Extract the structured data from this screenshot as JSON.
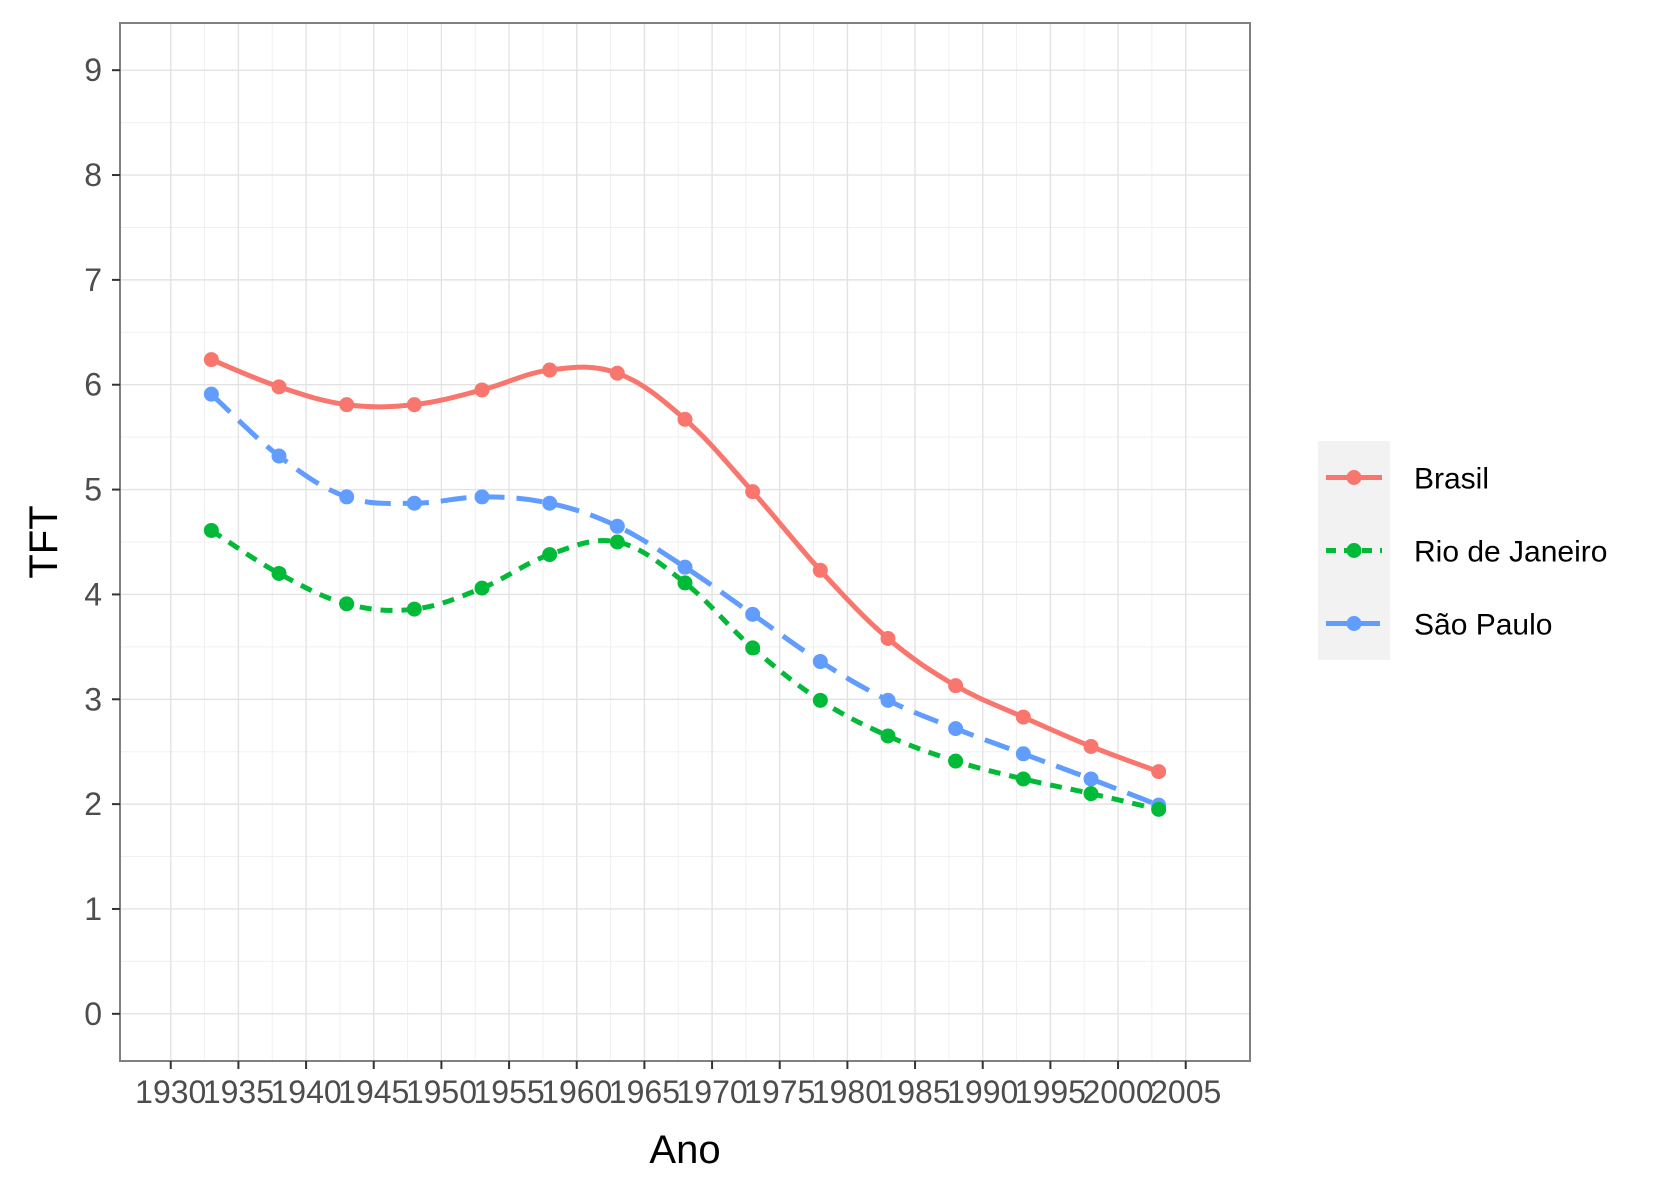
{
  "chart_data": {
    "type": "line",
    "title": "",
    "xlabel": "Ano",
    "ylabel": "TFT",
    "xlim": [
      1930,
      2005
    ],
    "ylim": [
      0,
      9
    ],
    "xticks": [
      1930,
      1935,
      1940,
      1945,
      1950,
      1955,
      1960,
      1965,
      1970,
      1975,
      1980,
      1985,
      1990,
      1995,
      2000,
      2005
    ],
    "yticks": [
      0,
      1,
      2,
      3,
      4,
      5,
      6,
      7,
      8,
      9
    ],
    "grid": true,
    "legend_position": "right",
    "x": [
      1933,
      1938,
      1943,
      1948,
      1953,
      1958,
      1963,
      1968,
      1973,
      1978,
      1983,
      1988,
      1993,
      1998,
      2003
    ],
    "series": [
      {
        "name": "Brasil",
        "color": "#F8766D",
        "dash": "solid",
        "values": [
          6.24,
          5.98,
          5.81,
          5.81,
          5.95,
          6.14,
          6.11,
          5.67,
          4.98,
          4.23,
          3.58,
          3.13,
          2.83,
          2.55,
          2.31
        ]
      },
      {
        "name": "Rio de Janeiro",
        "color": "#00BA38",
        "dash": "dotted",
        "values": [
          4.61,
          4.2,
          3.91,
          3.86,
          4.06,
          4.38,
          4.5,
          4.11,
          3.49,
          2.99,
          2.65,
          2.41,
          2.24,
          2.1,
          1.95
        ]
      },
      {
        "name": "São Paulo",
        "color": "#619CFF",
        "dash": "dashed",
        "values": [
          5.91,
          5.32,
          4.93,
          4.87,
          4.93,
          4.87,
          4.65,
          4.26,
          3.81,
          3.36,
          2.99,
          2.72,
          2.48,
          2.24,
          1.99
        ]
      }
    ]
  }
}
